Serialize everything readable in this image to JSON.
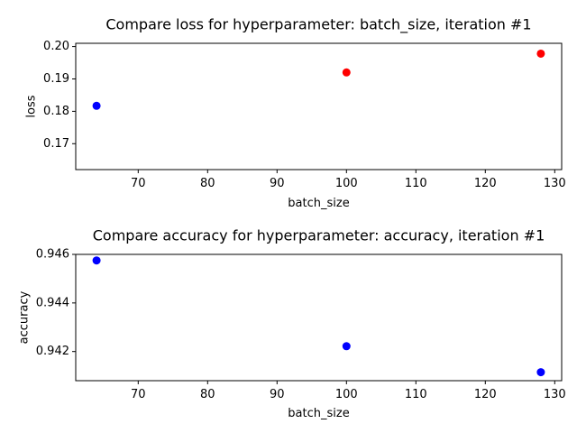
{
  "chart_data": [
    {
      "type": "scatter",
      "title": "Compare loss for hyperparameter: batch_size, iteration #1",
      "xlabel": "batch_size",
      "ylabel": "loss",
      "xlim": [
        61,
        131
      ],
      "ylim": [
        0.162,
        0.201
      ],
      "xticks": [
        70,
        80,
        90,
        100,
        110,
        120,
        130
      ],
      "yticks": [
        0.17,
        0.18,
        0.19,
        0.2
      ],
      "ytick_labels": [
        "0.17",
        "0.18",
        "0.19",
        "0.20"
      ],
      "grid": false,
      "points": [
        {
          "x": 64,
          "y": 0.1817,
          "color": "#0000ff"
        },
        {
          "x": 100,
          "y": 0.192,
          "color": "#ff0000"
        },
        {
          "x": 128,
          "y": 0.1978,
          "color": "#ff0000"
        }
      ]
    },
    {
      "type": "scatter",
      "title": "Compare accuracy for hyperparameter: accuracy, iteration #1",
      "xlabel": "batch_size",
      "ylabel": "accuracy",
      "xlim": [
        61,
        131
      ],
      "ylim": [
        0.9408,
        0.946
      ],
      "xticks": [
        70,
        80,
        90,
        100,
        110,
        120,
        130
      ],
      "yticks": [
        0.942,
        0.944,
        0.946
      ],
      "ytick_labels": [
        "0.942",
        "0.944",
        "0.946"
      ],
      "grid": false,
      "points": [
        {
          "x": 64,
          "y": 0.94575,
          "color": "#0000ff"
        },
        {
          "x": 100,
          "y": 0.94222,
          "color": "#0000ff"
        },
        {
          "x": 128,
          "y": 0.94115,
          "color": "#0000ff"
        }
      ]
    }
  ]
}
